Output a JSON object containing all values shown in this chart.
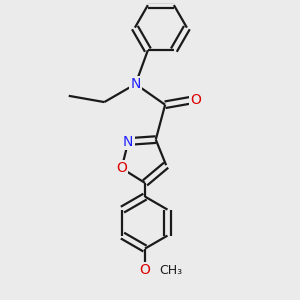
{
  "background_color": "#ebebeb",
  "bond_color": "#1a1a1a",
  "bond_width": 1.6,
  "dbo": 0.035,
  "N_color": "#2020ff",
  "O_color": "#dd0000",
  "text_color": "#1a1a1a",
  "font_size": 10,
  "figsize": [
    3.0,
    3.0
  ],
  "xlim": [
    -1.3,
    1.3
  ],
  "ylim": [
    -1.55,
    1.55
  ]
}
